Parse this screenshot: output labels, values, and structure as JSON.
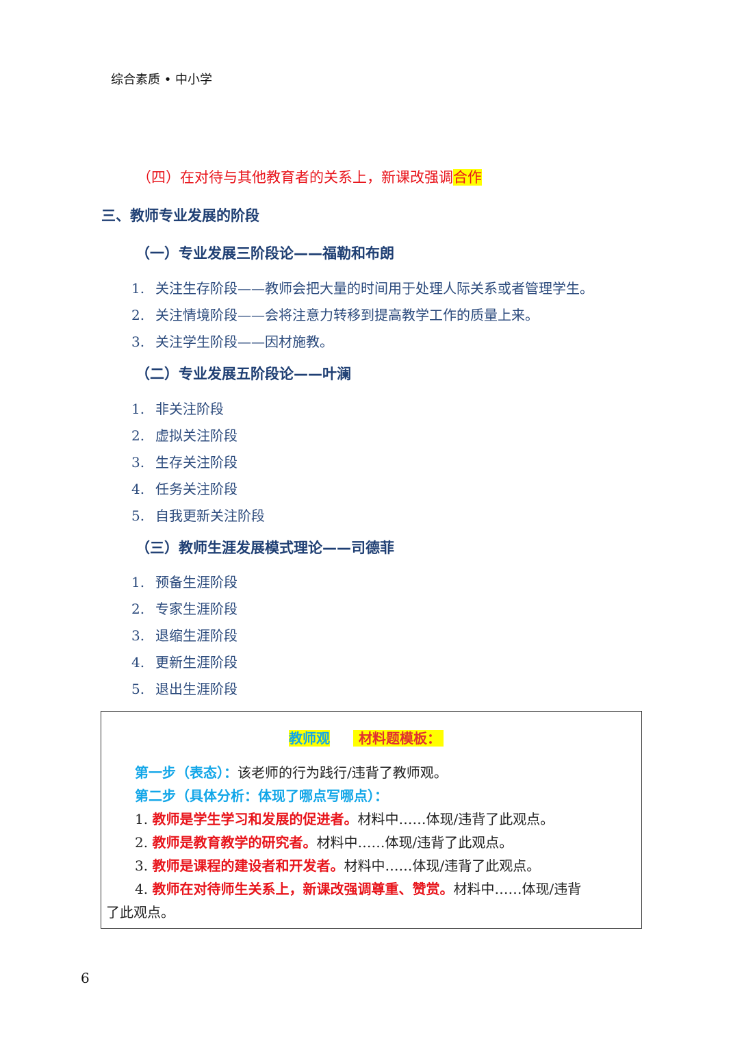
{
  "header": "综合素质 • 中小学",
  "point4": {
    "text": "（四）在对待与其他教育者的关系上，新课改强调",
    "highlight": "合作"
  },
  "section_title": "三、教师专业发展的阶段",
  "theories": [
    {
      "title": "（一）专业发展三阶段论——福勒和布朗",
      "items": [
        {
          "n": "1.",
          "text": "关注生存阶段——教师会把大量的时间用于处理人际关系或者管理学生。"
        },
        {
          "n": "2.",
          "text": "关注情境阶段——会将注意力转移到提高教学工作的质量上来。"
        },
        {
          "n": "3.",
          "text": "关注学生阶段——因材施教。"
        }
      ]
    },
    {
      "title": "（二）专业发展五阶段论——叶澜",
      "items": [
        {
          "n": "1.",
          "text": "非关注阶段"
        },
        {
          "n": "2.",
          "text": "虚拟关注阶段"
        },
        {
          "n": "3.",
          "text": "生存关注阶段"
        },
        {
          "n": "4.",
          "text": "任务关注阶段"
        },
        {
          "n": "5.",
          "text": "自我更新关注阶段"
        }
      ]
    },
    {
      "title": "（三）教师生涯发展模式理论——司德菲",
      "items": [
        {
          "n": "1.",
          "text": "预备生涯阶段"
        },
        {
          "n": "2.",
          "text": "专家生涯阶段"
        },
        {
          "n": "3.",
          "text": "退缩生涯阶段"
        },
        {
          "n": "4.",
          "text": "更新生涯阶段"
        },
        {
          "n": "5.",
          "text": "退出生涯阶段"
        }
      ]
    }
  ],
  "template_box": {
    "tag1": "教师观",
    "tag2": "材料题模板：",
    "step1_label": "第一步（表态）：",
    "step1_text": "该老师的行为践行/违背了教师观。",
    "step2_label": "第二步（具体分析：体现了哪点写哪点）：",
    "points": [
      {
        "n": "1.",
        "key": "教师是学生学习和发展的促进者。",
        "text": "材料中……体现/违背了此观点。"
      },
      {
        "n": "2.",
        "key": "教师是教育教学的研究者。",
        "text": "材料中……体现/违背了此观点。"
      },
      {
        "n": "3.",
        "key": "教师是课程的建设者和开发者。",
        "text": "材料中……体现/违背了此观点。"
      },
      {
        "n": "4.",
        "key": "教师在对待师生关系上，新课改强调尊重、赞赏。",
        "text": "材料中……体现/违背",
        "cont": "了此观点。"
      }
    ]
  },
  "page_number": "6",
  "colors": {
    "heading": "#1f3f73",
    "body": "#2b4a7c",
    "red": "#e8141b",
    "cyan": "#12a6e8",
    "highlight": "#ffff00"
  }
}
